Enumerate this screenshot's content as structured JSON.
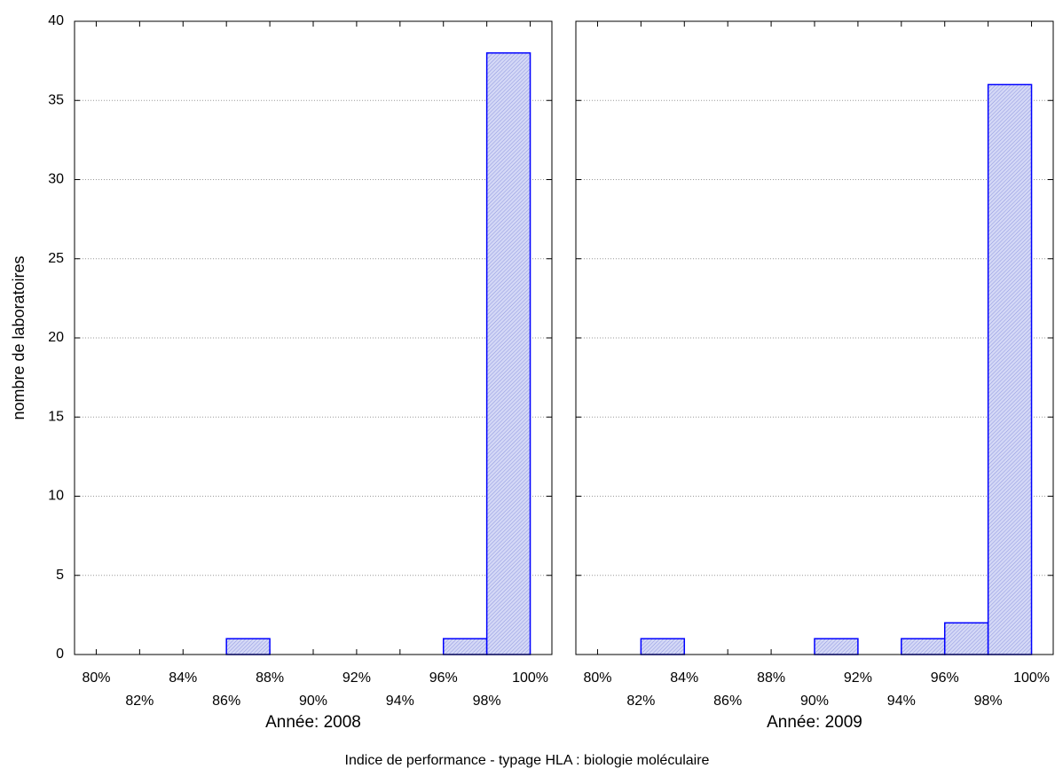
{
  "figure": {
    "ylabel": "nombre de laboratoires",
    "xlabel": "Indice de performance - typage HLA : biologie moléculaire"
  },
  "chart_data": [
    {
      "type": "histogram",
      "title": "Année: 2008",
      "bins": [
        80,
        82,
        84,
        86,
        88,
        90,
        92,
        94,
        96,
        98,
        100
      ],
      "values": [
        0,
        0,
        0,
        1,
        0,
        0,
        0,
        0,
        1,
        38
      ],
      "color": "#0000ff",
      "xlim": [
        79,
        101
      ],
      "xticks": [
        {
          "value": 80,
          "label": "80%"
        },
        {
          "value": 82,
          "label": "82%"
        },
        {
          "value": 84,
          "label": "84%"
        },
        {
          "value": 86,
          "label": "86%"
        },
        {
          "value": 88,
          "label": "88%"
        },
        {
          "value": 90,
          "label": "90%"
        },
        {
          "value": 92,
          "label": "92%"
        },
        {
          "value": 94,
          "label": "94%"
        },
        {
          "value": 96,
          "label": "96%"
        },
        {
          "value": 98,
          "label": "98%"
        },
        {
          "value": 100,
          "label": "100%"
        }
      ],
      "ylim": [
        0,
        40
      ],
      "yticks": [
        0,
        5,
        10,
        15,
        20,
        25,
        30,
        35,
        40
      ],
      "grid": true
    },
    {
      "type": "histogram",
      "title": "Année: 2009",
      "bins": [
        80,
        82,
        84,
        86,
        88,
        90,
        92,
        94,
        96,
        98,
        100
      ],
      "values": [
        0,
        1,
        0,
        0,
        0,
        1,
        0,
        1,
        2,
        36
      ],
      "color": "#0000ff",
      "xlim": [
        79,
        101
      ],
      "xticks": [
        {
          "value": 80,
          "label": "80%"
        },
        {
          "value": 82,
          "label": "82%"
        },
        {
          "value": 84,
          "label": "84%"
        },
        {
          "value": 86,
          "label": "86%"
        },
        {
          "value": 88,
          "label": "88%"
        },
        {
          "value": 90,
          "label": "90%"
        },
        {
          "value": 92,
          "label": "92%"
        },
        {
          "value": 94,
          "label": "94%"
        },
        {
          "value": 96,
          "label": "96%"
        },
        {
          "value": 98,
          "label": "98%"
        },
        {
          "value": 100,
          "label": "100%"
        }
      ],
      "ylim": [
        0,
        40
      ],
      "yticks": [
        0,
        5,
        10,
        15,
        20,
        25,
        30,
        35,
        40
      ],
      "grid": true
    }
  ]
}
